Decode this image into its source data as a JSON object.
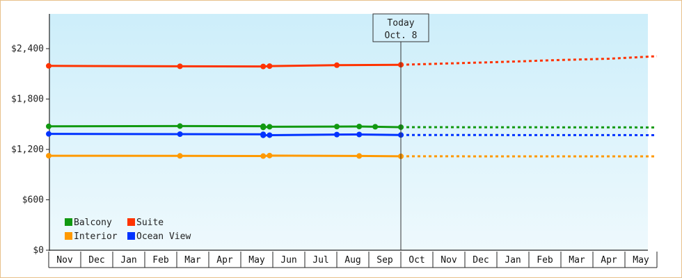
{
  "chart_data": {
    "type": "line",
    "title": "",
    "xlabel": "",
    "ylabel": "",
    "ylim": [
      0,
      2400
    ],
    "y_ticks": [
      {
        "value": 0,
        "label": "$0"
      },
      {
        "value": 600,
        "label": "$600"
      },
      {
        "value": 1200,
        "label": "$1,200"
      },
      {
        "value": 1800,
        "label": "$1,800"
      },
      {
        "value": 2400,
        "label": "$2,400"
      }
    ],
    "months": [
      "Nov",
      "Dec",
      "Jan",
      "Feb",
      "Mar",
      "Apr",
      "May",
      "Jun",
      "Jul",
      "Aug",
      "Sep",
      "Oct",
      "Nov",
      "Dec",
      "Jan",
      "Feb",
      "Mar",
      "Apr",
      "May"
    ],
    "today_marker": {
      "line1": "Today",
      "line2": "Oct. 8",
      "month_pos": 11.0
    },
    "grid": false,
    "legend_position": "bottom-left",
    "series": [
      {
        "name": "Suite",
        "color": "#ff3300",
        "actual": [
          [
            0.0,
            2195
          ],
          [
            4.1,
            2190
          ],
          [
            6.7,
            2188
          ],
          [
            6.9,
            2192
          ],
          [
            9.0,
            2203
          ],
          [
            11.0,
            2208
          ]
        ],
        "forecast": [
          [
            11.0,
            2208
          ],
          [
            14.0,
            2240
          ],
          [
            16.0,
            2265
          ],
          [
            17.5,
            2280
          ],
          [
            19.0,
            2310
          ]
        ]
      },
      {
        "name": "Balcony",
        "color": "#119911",
        "actual": [
          [
            0.0,
            1475
          ],
          [
            4.1,
            1478
          ],
          [
            6.7,
            1476
          ],
          [
            6.7,
            1462
          ],
          [
            6.9,
            1470
          ],
          [
            9.0,
            1472
          ],
          [
            9.7,
            1473
          ],
          [
            10.2,
            1470
          ],
          [
            11.0,
            1465
          ]
        ],
        "forecast": [
          [
            11.0,
            1465
          ],
          [
            19.0,
            1462
          ]
        ]
      },
      {
        "name": "Ocean View",
        "color": "#0033ff",
        "actual": [
          [
            0.0,
            1385
          ],
          [
            4.1,
            1382
          ],
          [
            6.7,
            1380
          ],
          [
            6.7,
            1368
          ],
          [
            6.9,
            1370
          ],
          [
            9.0,
            1377
          ],
          [
            9.7,
            1378
          ],
          [
            11.0,
            1372
          ]
        ],
        "forecast": [
          [
            11.0,
            1372
          ],
          [
            19.0,
            1370
          ]
        ]
      },
      {
        "name": "Interior",
        "color": "#ff9900",
        "actual": [
          [
            0.0,
            1125
          ],
          [
            4.1,
            1123
          ],
          [
            6.7,
            1121
          ],
          [
            6.9,
            1127
          ],
          [
            9.7,
            1122
          ],
          [
            11.0,
            1118
          ]
        ],
        "forecast": [
          [
            11.0,
            1118
          ],
          [
            19.0,
            1117
          ]
        ]
      }
    ],
    "legend_order": [
      "Balcony",
      "Suite",
      "Interior",
      "Ocean View"
    ]
  }
}
